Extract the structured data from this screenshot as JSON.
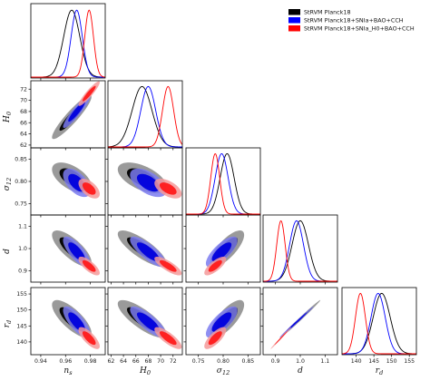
{
  "chart_data": {
    "type": "triangle",
    "parameters": [
      {
        "key": "ns",
        "label": "n_s",
        "ticks": [
          0.94,
          0.96,
          0.98
        ],
        "tick_labels": [
          "0.94",
          "0.96",
          "0.98"
        ],
        "range": [
          0.932,
          0.992
        ]
      },
      {
        "key": "H0",
        "label": "H_0",
        "ticks": [
          62,
          64,
          66,
          68,
          70,
          72
        ],
        "tick_labels": [
          "62",
          "64",
          "66",
          "68",
          "70",
          "72"
        ],
        "range": [
          61.5,
          73.5
        ]
      },
      {
        "key": "s12",
        "label": "σ_12",
        "ticks": [
          0.75,
          0.8,
          0.85
        ],
        "tick_labels": [
          "0.75",
          "0.80",
          "0.85"
        ],
        "range": [
          0.725,
          0.875
        ]
      },
      {
        "key": "d",
        "label": "d",
        "ticks": [
          0.9,
          1.0,
          1.1
        ],
        "tick_labels": [
          "0.9",
          "1.0",
          "1.1"
        ],
        "range": [
          0.85,
          1.15
        ]
      },
      {
        "key": "rd",
        "label": "r_d",
        "ticks": [
          140,
          145,
          150,
          155
        ],
        "tick_labels": [
          "140",
          "145",
          "150",
          "155"
        ],
        "range": [
          136,
          157
        ]
      }
    ],
    "series": [
      {
        "name": "StRVM Planck18",
        "color": "#000000",
        "fill_inner": "#000000",
        "fill_outer": "#888888",
        "mean": {
          "ns": 0.965,
          "H0": 67.0,
          "s12": 0.808,
          "d": 1.0,
          "rd": 147.2
        },
        "sigma": {
          "ns": 0.0065,
          "H0": 1.6,
          "s12": 0.014,
          "d": 0.033,
          "rd": 2.4
        }
      },
      {
        "name": "StRVM Planck18+SNIa+BAO+CCH",
        "color": "#0000ff",
        "fill_inner": "#0000dd",
        "fill_outer": "#7b7bf0",
        "mean": {
          "ns": 0.969,
          "H0": 68.0,
          "s12": 0.797,
          "d": 0.985,
          "rd": 146.2
        },
        "sigma": {
          "ns": 0.0045,
          "H0": 1.2,
          "s12": 0.013,
          "d": 0.028,
          "rd": 2.0
        }
      },
      {
        "name": "StRVM Planck18+SNIa_H0+BAO+CCH",
        "color": "#ff0000",
        "fill_inner": "#ff1a1a",
        "fill_outer": "#f59a9a",
        "mean": {
          "ns": 0.979,
          "H0": 71.2,
          "s12": 0.784,
          "d": 0.922,
          "rd": 141.2
        },
        "sigma": {
          "ns": 0.0035,
          "H0": 0.9,
          "s12": 0.009,
          "d": 0.017,
          "rd": 1.4
        }
      }
    ],
    "correlations": {
      "ns|H0": 0.92,
      "ns|s12": -0.55,
      "ns|d": -0.75,
      "ns|rd": -0.75,
      "H0|s12": -0.55,
      "H0|d": -0.8,
      "H0|rd": -0.8,
      "s12|d": 0.75,
      "s12|rd": 0.75,
      "d|rd": 0.995
    }
  }
}
